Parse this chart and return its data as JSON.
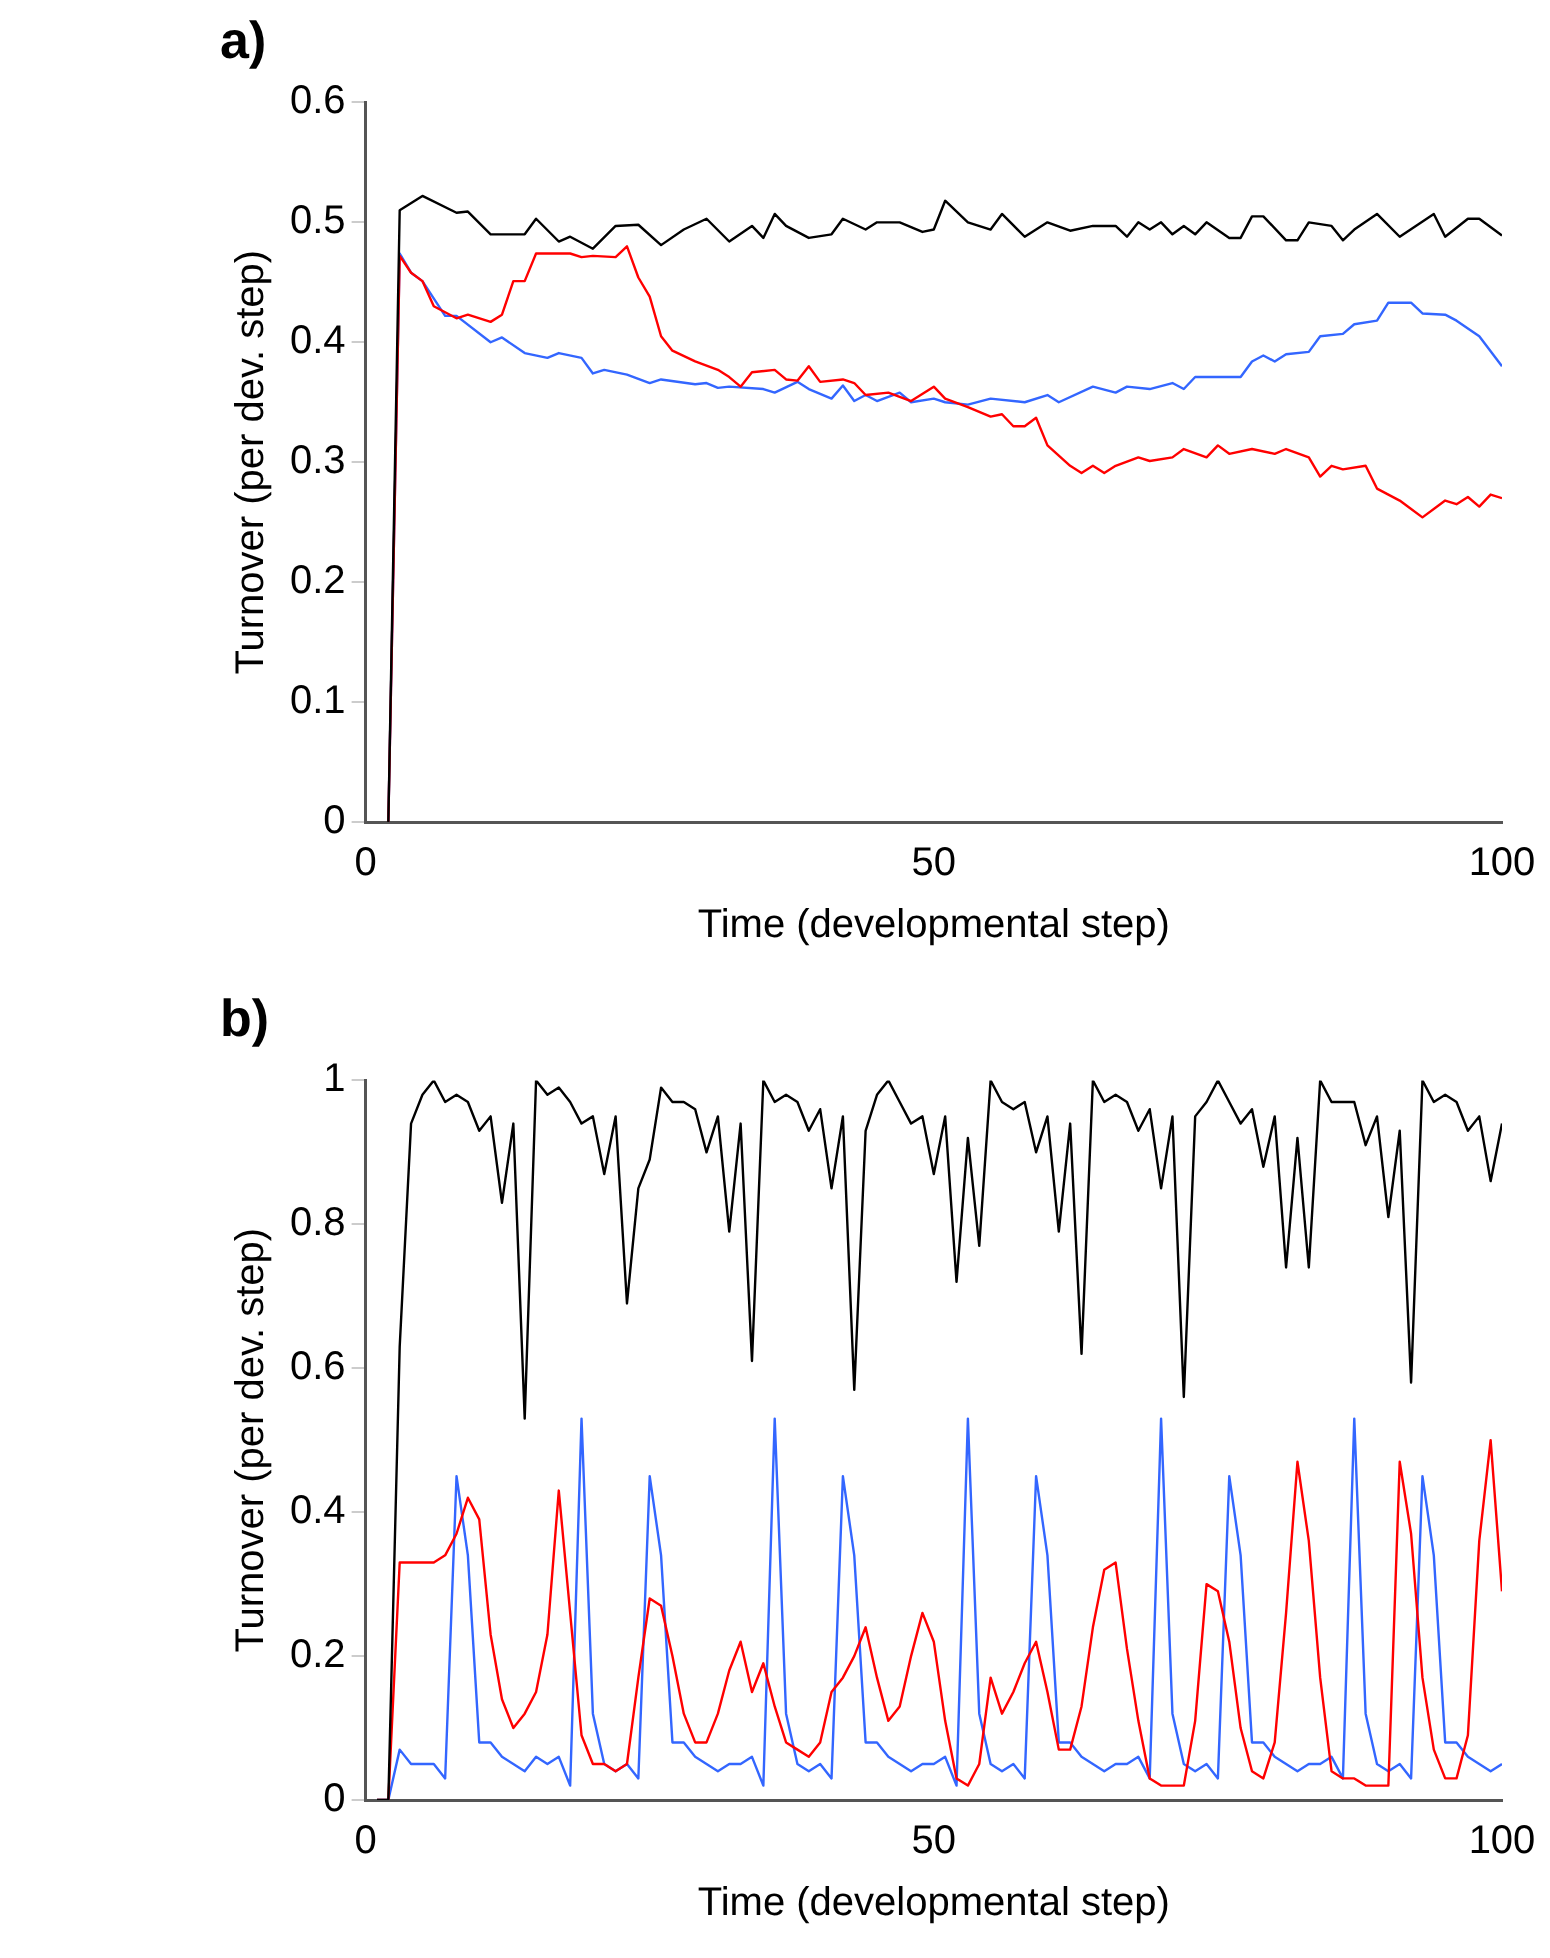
{
  "chart_data": [
    {
      "type": "line",
      "title": "a)",
      "xlabel": "Time (developmental step)",
      "ylabel": "Turnover (per dev. step)",
      "xlim": [
        0,
        100
      ],
      "xticks": [
        0,
        50,
        100
      ],
      "ylim": [
        0,
        0.6
      ],
      "yticks": [
        0,
        0.1,
        0.2,
        0.3,
        0.4,
        0.5,
        0.6
      ],
      "grid": false,
      "legend": false,
      "marker": "none",
      "line_style": "solid",
      "series": [
        {
          "color": "#000000",
          "x": [
            2,
            3,
            5,
            8,
            9,
            11,
            14,
            15,
            17,
            18,
            20,
            22,
            24,
            26,
            28,
            30,
            32,
            34,
            35,
            36,
            37,
            39,
            41,
            42,
            44,
            45,
            47,
            49,
            50,
            51,
            53,
            55,
            56,
            58,
            60,
            62,
            64,
            66,
            67,
            68,
            69,
            70,
            71,
            72,
            73,
            74,
            76,
            77,
            78,
            79,
            81,
            82,
            83,
            85,
            86,
            87,
            89,
            91,
            94,
            95,
            97,
            98,
            100
          ],
          "values": [
            0,
            0.51,
            0.522,
            0.508,
            0.509,
            0.49,
            0.49,
            0.503,
            0.484,
            0.488,
            0.478,
            0.497,
            0.498,
            0.481,
            0.494,
            0.503,
            0.484,
            0.497,
            0.487,
            0.507,
            0.497,
            0.487,
            0.49,
            0.503,
            0.494,
            0.5,
            0.5,
            0.492,
            0.494,
            0.518,
            0.5,
            0.494,
            0.507,
            0.488,
            0.5,
            0.493,
            0.497,
            0.497,
            0.488,
            0.5,
            0.494,
            0.5,
            0.49,
            0.497,
            0.49,
            0.5,
            0.487,
            0.487,
            0.505,
            0.505,
            0.485,
            0.485,
            0.5,
            0.497,
            0.485,
            0.494,
            0.507,
            0.488,
            0.507,
            0.488,
            0.503,
            0.503,
            0.489
          ]
        },
        {
          "color": "#ff0000",
          "x": [
            2,
            3,
            4,
            5,
            6,
            8,
            9,
            11,
            12,
            13,
            14,
            15,
            18,
            19,
            20,
            22,
            23,
            24,
            25,
            26,
            27,
            29,
            31,
            32,
            33,
            34,
            36,
            37,
            38,
            39,
            40,
            42,
            43,
            44,
            46,
            48,
            50,
            51,
            53,
            55,
            56,
            57,
            58,
            59,
            60,
            62,
            63,
            64,
            65,
            66,
            68,
            69,
            71,
            72,
            74,
            75,
            76,
            78,
            80,
            81,
            83,
            84,
            85,
            86,
            88,
            89,
            91,
            93,
            95,
            96,
            97,
            98,
            99,
            100
          ],
          "values": [
            0,
            0.472,
            0.458,
            0.451,
            0.43,
            0.42,
            0.423,
            0.417,
            0.423,
            0.451,
            0.451,
            0.474,
            0.474,
            0.471,
            0.472,
            0.471,
            0.48,
            0.454,
            0.438,
            0.405,
            0.393,
            0.384,
            0.377,
            0.371,
            0.363,
            0.375,
            0.377,
            0.369,
            0.368,
            0.38,
            0.367,
            0.369,
            0.366,
            0.356,
            0.358,
            0.351,
            0.363,
            0.353,
            0.346,
            0.338,
            0.34,
            0.33,
            0.33,
            0.337,
            0.314,
            0.297,
            0.291,
            0.297,
            0.291,
            0.297,
            0.304,
            0.301,
            0.304,
            0.311,
            0.304,
            0.314,
            0.307,
            0.311,
            0.307,
            0.311,
            0.304,
            0.288,
            0.297,
            0.294,
            0.297,
            0.278,
            0.268,
            0.254,
            0.268,
            0.265,
            0.271,
            0.263,
            0.273,
            0.27
          ]
        },
        {
          "color": "#3366ff",
          "x": [
            2,
            3,
            4,
            5,
            7,
            8,
            11,
            12,
            14,
            16,
            17,
            19,
            20,
            21,
            23,
            25,
            26,
            29,
            30,
            31,
            32,
            35,
            36,
            38,
            39,
            41,
            42,
            43,
            44,
            45,
            47,
            48,
            50,
            51,
            53,
            55,
            58,
            60,
            61,
            64,
            66,
            67,
            69,
            71,
            72,
            73,
            77,
            78,
            79,
            80,
            81,
            83,
            84,
            86,
            87,
            89,
            90,
            92,
            93,
            95,
            96,
            98,
            100
          ],
          "values": [
            0,
            0.474,
            0.458,
            0.451,
            0.422,
            0.422,
            0.4,
            0.404,
            0.391,
            0.387,
            0.391,
            0.387,
            0.374,
            0.377,
            0.373,
            0.366,
            0.369,
            0.365,
            0.366,
            0.362,
            0.363,
            0.361,
            0.358,
            0.367,
            0.361,
            0.353,
            0.364,
            0.351,
            0.356,
            0.351,
            0.358,
            0.35,
            0.353,
            0.35,
            0.348,
            0.353,
            0.35,
            0.356,
            0.35,
            0.363,
            0.358,
            0.363,
            0.361,
            0.366,
            0.361,
            0.371,
            0.371,
            0.384,
            0.389,
            0.384,
            0.39,
            0.392,
            0.405,
            0.407,
            0.415,
            0.418,
            0.433,
            0.433,
            0.424,
            0.423,
            0.418,
            0.405,
            0.38
          ]
        }
      ]
    },
    {
      "type": "line",
      "title": "b)",
      "xlabel": "Time (developmental step)",
      "ylabel": "Turnover (per dev. step)",
      "xlim": [
        0,
        100
      ],
      "xticks": [
        0,
        50,
        100
      ],
      "ylim": [
        0,
        1
      ],
      "yticks": [
        0,
        0.2,
        0.4,
        0.6,
        0.8,
        1
      ],
      "grid": false,
      "legend": false,
      "marker": "none",
      "line_style": "solid",
      "x": [
        1,
        2,
        3,
        4,
        5,
        6,
        7,
        8,
        9,
        10,
        11,
        12,
        13,
        14,
        15,
        16,
        17,
        18,
        19,
        20,
        21,
        22,
        23,
        24,
        25,
        26,
        27,
        28,
        29,
        30,
        31,
        32,
        33,
        34,
        35,
        36,
        37,
        38,
        39,
        40,
        41,
        42,
        43,
        44,
        45,
        46,
        47,
        48,
        49,
        50,
        51,
        52,
        53,
        54,
        55,
        56,
        57,
        58,
        59,
        60,
        61,
        62,
        63,
        64,
        65,
        66,
        67,
        68,
        69,
        70,
        71,
        72,
        73,
        74,
        75,
        76,
        77,
        78,
        79,
        80,
        81,
        82,
        83,
        84,
        85,
        86,
        87,
        88,
        89,
        90,
        91,
        92,
        93,
        94,
        95,
        96,
        97,
        98,
        99,
        100
      ],
      "series": [
        {
          "color": "#000000",
          "values": [
            0,
            0,
            0.63,
            0.94,
            0.98,
            1.0,
            0.97,
            0.98,
            0.97,
            0.93,
            0.95,
            0.83,
            0.94,
            0.53,
            1.0,
            0.98,
            0.99,
            0.97,
            0.94,
            0.95,
            0.87,
            0.95,
            0.69,
            0.85,
            0.89,
            0.99,
            0.97,
            0.97,
            0.96,
            0.9,
            0.95,
            0.79,
            0.94,
            0.61,
            1.0,
            0.97,
            0.98,
            0.97,
            0.93,
            0.96,
            0.85,
            0.95,
            0.57,
            0.93,
            0.98,
            1.0,
            0.97,
            0.94,
            0.95,
            0.87,
            0.95,
            0.72,
            0.92,
            0.77,
            1.0,
            0.97,
            0.96,
            0.97,
            0.9,
            0.95,
            0.79,
            0.94,
            0.62,
            1.0,
            0.97,
            0.98,
            0.97,
            0.93,
            0.96,
            0.85,
            0.95,
            0.56,
            0.95,
            0.97,
            1.0,
            0.97,
            0.94,
            0.96,
            0.88,
            0.95,
            0.74,
            0.92,
            0.74,
            1.0,
            0.97,
            0.97,
            0.97,
            0.91,
            0.95,
            0.81,
            0.93,
            0.58,
            1.0,
            0.97,
            0.98,
            0.97,
            0.93,
            0.95,
            0.86,
            0.94
          ]
        },
        {
          "color": "#ff0000",
          "values": [
            0,
            0,
            0.33,
            0.33,
            0.33,
            0.33,
            0.34,
            0.37,
            0.42,
            0.39,
            0.23,
            0.14,
            0.1,
            0.12,
            0.15,
            0.23,
            0.43,
            0.26,
            0.09,
            0.05,
            0.05,
            0.04,
            0.05,
            0.17,
            0.28,
            0.27,
            0.2,
            0.12,
            0.08,
            0.08,
            0.12,
            0.18,
            0.22,
            0.15,
            0.19,
            0.13,
            0.08,
            0.07,
            0.06,
            0.08,
            0.15,
            0.17,
            0.2,
            0.24,
            0.17,
            0.11,
            0.13,
            0.2,
            0.26,
            0.22,
            0.11,
            0.03,
            0.02,
            0.05,
            0.17,
            0.12,
            0.15,
            0.19,
            0.22,
            0.15,
            0.07,
            0.07,
            0.13,
            0.24,
            0.32,
            0.33,
            0.21,
            0.11,
            0.03,
            0.02,
            0.02,
            0.02,
            0.11,
            0.3,
            0.29,
            0.22,
            0.1,
            0.04,
            0.03,
            0.08,
            0.26,
            0.47,
            0.36,
            0.17,
            0.04,
            0.03,
            0.03,
            0.02,
            0.02,
            0.02,
            0.47,
            0.37,
            0.17,
            0.07,
            0.03,
            0.03,
            0.09,
            0.36,
            0.5,
            0.29
          ]
        },
        {
          "color": "#3366ff",
          "values": [
            0,
            0,
            0.07,
            0.05,
            0.05,
            0.05,
            0.03,
            0.45,
            0.34,
            0.08,
            0.08,
            0.06,
            0.05,
            0.04,
            0.06,
            0.05,
            0.06,
            0.02,
            0.53,
            0.12,
            0.05,
            0.04,
            0.05,
            0.03,
            0.45,
            0.34,
            0.08,
            0.08,
            0.06,
            0.05,
            0.04,
            0.05,
            0.05,
            0.06,
            0.02,
            0.53,
            0.12,
            0.05,
            0.04,
            0.05,
            0.03,
            0.45,
            0.34,
            0.08,
            0.08,
            0.06,
            0.05,
            0.04,
            0.05,
            0.05,
            0.06,
            0.02,
            0.53,
            0.12,
            0.05,
            0.04,
            0.05,
            0.03,
            0.45,
            0.34,
            0.08,
            0.08,
            0.06,
            0.05,
            0.04,
            0.05,
            0.05,
            0.06,
            0.03,
            0.53,
            0.12,
            0.05,
            0.04,
            0.05,
            0.03,
            0.45,
            0.34,
            0.08,
            0.08,
            0.06,
            0.05,
            0.04,
            0.05,
            0.05,
            0.06,
            0.03,
            0.53,
            0.12,
            0.05,
            0.04,
            0.05,
            0.03,
            0.45,
            0.34,
            0.08,
            0.08,
            0.06,
            0.05,
            0.04,
            0.05
          ]
        }
      ]
    }
  ]
}
